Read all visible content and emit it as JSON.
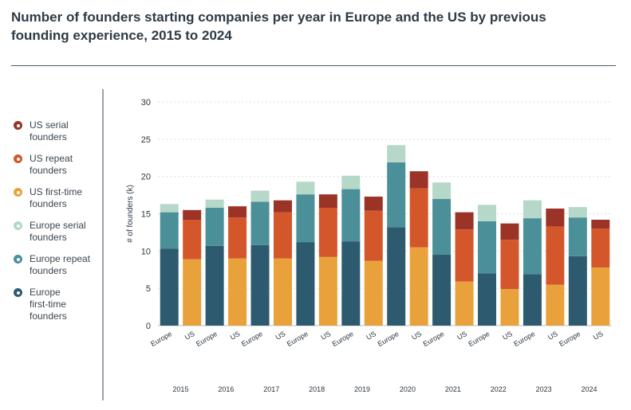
{
  "header": {
    "title": "Number of founders starting companies per year in Europe and the US by previous founding experience, 2015 to 2024"
  },
  "legend": {
    "items": [
      {
        "label": "US serial\nfounders",
        "color": "#9b3426"
      },
      {
        "label": "US repeat\nfounders",
        "color": "#d4572c"
      },
      {
        "label": "US first-time\n founders",
        "color": "#e9a23b"
      },
      {
        "label": "Europe serial\nfounders",
        "color": "#b5d8c8"
      },
      {
        "label": "Europe repeat\nfounders",
        "color": "#4b9098"
      },
      {
        "label": "Europe\nfirst-time\nfounders",
        "color": "#2d5a6e"
      }
    ]
  },
  "chart_data": {
    "type": "bar",
    "stacked": true,
    "ylabel": "# of founders (k)",
    "ylim": [
      0,
      30
    ],
    "yticks": [
      "0",
      "5",
      "10",
      "15",
      "20",
      "25",
      "30"
    ],
    "grid": true,
    "legend_position": "left",
    "years": [
      "2015",
      "2016",
      "2017",
      "2018",
      "2019",
      "2020",
      "2021",
      "2022",
      "2023",
      "2024"
    ],
    "categories": [
      "Europe",
      "US",
      "Europe",
      "US",
      "Europe",
      "US",
      "Europe",
      "US",
      "Europe",
      "US",
      "Europe",
      "US",
      "Europe",
      "US",
      "Europe",
      "US",
      "Europe",
      "US",
      "Europe",
      "US"
    ],
    "series": [
      {
        "name": "Europe first-time founders",
        "color": "#2d5a6e",
        "values": [
          10.3,
          0,
          10.7,
          0,
          10.8,
          0,
          11.2,
          0,
          11.3,
          0,
          13.2,
          0,
          9.5,
          0,
          7.0,
          0,
          6.9,
          0,
          9.3,
          0
        ]
      },
      {
        "name": "Europe repeat founders",
        "color": "#4b9098",
        "values": [
          4.9,
          0,
          5.1,
          0,
          5.8,
          0,
          6.4,
          0,
          7.0,
          0,
          8.7,
          0,
          7.5,
          0,
          7.0,
          0,
          7.5,
          0,
          5.2,
          0
        ]
      },
      {
        "name": "Europe serial founders",
        "color": "#b5d8c8",
        "values": [
          1.1,
          0,
          1.1,
          0,
          1.5,
          0,
          1.7,
          0,
          1.8,
          0,
          2.3,
          0,
          2.2,
          0,
          2.2,
          0,
          2.4,
          0,
          1.4,
          0
        ]
      },
      {
        "name": "US first-time founders",
        "color": "#e9a23b",
        "values": [
          0,
          8.9,
          0,
          9.0,
          0,
          9.0,
          0,
          9.2,
          0,
          8.7,
          0,
          10.5,
          0,
          5.9,
          0,
          4.9,
          0,
          5.5,
          0,
          7.8
        ]
      },
      {
        "name": "US repeat founders",
        "color": "#d4572c",
        "values": [
          0,
          5.3,
          0,
          5.5,
          0,
          6.2,
          0,
          6.6,
          0,
          6.7,
          0,
          7.9,
          0,
          7.0,
          0,
          6.6,
          0,
          7.8,
          0,
          5.2
        ]
      },
      {
        "name": "US serial founders",
        "color": "#9b3426",
        "values": [
          0,
          1.3,
          0,
          1.5,
          0,
          1.6,
          0,
          1.8,
          0,
          1.9,
          0,
          2.3,
          0,
          2.3,
          0,
          2.2,
          0,
          2.4,
          0,
          1.2
        ]
      }
    ]
  }
}
